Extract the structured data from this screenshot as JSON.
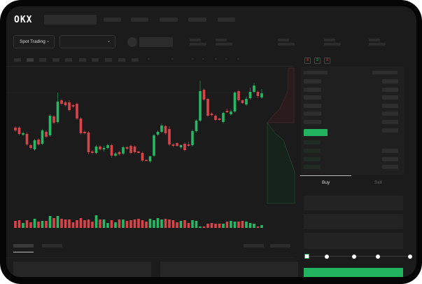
{
  "header": {
    "logo": "OKX"
  },
  "market": {
    "type_label": "Spot Trading",
    "pair_label": ""
  },
  "order_form": {
    "tabs": [
      {
        "label": "Buy",
        "active": true
      },
      {
        "label": "Sell",
        "active": false
      }
    ],
    "slider_percent": 0
  },
  "colors": {
    "up": "#26b865",
    "down": "#d9444a",
    "accent": "#22b35e",
    "background": "#1b1b1b"
  },
  "chart_data": {
    "type": "candlestick",
    "candles": [
      [
        118,
        120,
        112,
        114
      ],
      [
        118,
        120,
        107,
        109
      ],
      [
        108,
        112,
        106,
        110
      ],
      [
        109,
        111,
        92,
        94
      ],
      [
        93,
        95,
        87,
        89
      ],
      [
        87,
        102,
        85,
        100
      ],
      [
        101,
        103,
        92,
        94
      ],
      [
        95,
        116,
        93,
        114
      ],
      [
        112,
        114,
        103,
        105
      ],
      [
        107,
        137,
        105,
        135
      ],
      [
        134,
        136,
        123,
        125
      ],
      [
        126,
        168,
        124,
        155
      ],
      [
        157,
        159,
        150,
        152
      ],
      [
        154,
        156,
        148,
        150
      ],
      [
        154,
        157,
        141,
        143
      ],
      [
        150,
        152,
        146,
        148
      ],
      [
        152,
        154,
        129,
        131
      ],
      [
        131,
        133,
        108,
        110
      ],
      [
        112,
        114,
        108,
        110
      ],
      [
        111,
        113,
        80,
        83
      ],
      [
        84,
        86,
        80,
        82
      ],
      [
        82,
        93,
        80,
        91
      ],
      [
        91,
        93,
        85,
        87
      ],
      [
        87,
        92,
        84,
        89
      ],
      [
        89,
        95,
        87,
        93
      ],
      [
        93,
        95,
        75,
        78
      ],
      [
        78,
        83,
        76,
        81
      ],
      [
        83,
        85,
        78,
        80
      ],
      [
        81,
        92,
        79,
        90
      ],
      [
        90,
        92,
        86,
        88
      ],
      [
        92,
        94,
        80,
        82
      ],
      [
        91,
        93,
        81,
        83
      ],
      [
        84,
        85,
        81,
        82
      ],
      [
        82,
        84,
        69,
        71
      ],
      [
        72,
        73,
        70,
        71
      ],
      [
        70,
        78,
        68,
        77
      ],
      [
        78,
        109,
        76,
        107
      ],
      [
        108,
        114,
        106,
        112
      ],
      [
        112,
        124,
        110,
        121
      ],
      [
        120,
        122,
        108,
        110
      ],
      [
        116,
        120,
        92,
        94
      ],
      [
        94,
        96,
        90,
        92
      ],
      [
        96,
        97,
        91,
        92
      ],
      [
        90,
        94,
        88,
        93
      ],
      [
        95,
        97,
        84,
        86
      ],
      [
        94,
        98,
        91,
        92
      ],
      [
        93,
        115,
        91,
        113
      ],
      [
        113,
        130,
        111,
        128
      ],
      [
        128,
        185,
        126,
        170
      ],
      [
        172,
        174,
        156,
        158
      ],
      [
        159,
        160,
        133,
        135
      ],
      [
        138,
        140,
        134,
        136
      ],
      [
        135,
        137,
        127,
        129
      ],
      [
        131,
        132,
        128,
        129
      ],
      [
        126,
        141,
        124,
        139
      ],
      [
        142,
        145,
        139,
        140
      ],
      [
        137,
        144,
        135,
        141
      ],
      [
        141,
        170,
        139,
        168
      ],
      [
        170,
        172,
        155,
        157
      ],
      [
        157,
        158,
        152,
        153
      ],
      [
        151,
        162,
        149,
        159
      ],
      [
        160,
        175,
        158,
        169
      ],
      [
        169,
        182,
        167,
        178
      ],
      [
        169,
        171,
        160,
        163
      ],
      [
        161,
        173,
        159,
        167
      ]
    ],
    "volumes": [
      10,
      11,
      7,
      11,
      8,
      13,
      9,
      10,
      10,
      17,
      14,
      17,
      13,
      12,
      12,
      8,
      11,
      14,
      11,
      12,
      9,
      18,
      12,
      12,
      7,
      11,
      8,
      12,
      12,
      10,
      11,
      12,
      13,
      11,
      9,
      13,
      11,
      14,
      12,
      13,
      12,
      11,
      8,
      10,
      11,
      7,
      11,
      10,
      2,
      2,
      6,
      7,
      6,
      6,
      6,
      9,
      10,
      9,
      9,
      10,
      9,
      7,
      6,
      2,
      4
    ]
  }
}
